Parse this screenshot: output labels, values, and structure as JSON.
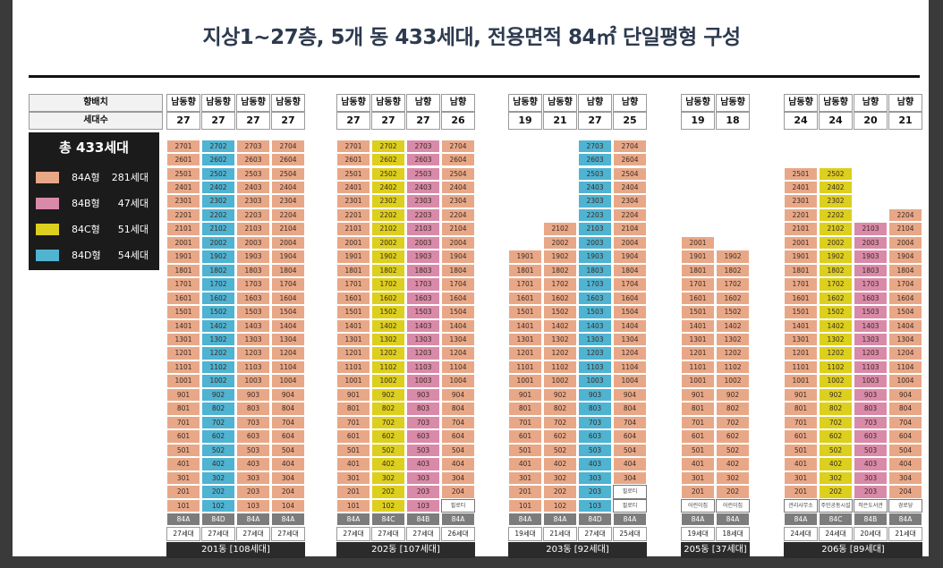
{
  "title": "지상1~27층, 5개 동 433세대, 전용면적 84㎡ 단일평형 구성",
  "row_labels": {
    "direction": "향배치",
    "units": "세대수"
  },
  "legend": {
    "title": "총 433세대",
    "items": [
      {
        "key": "A",
        "name": "84A형",
        "count": "281세대",
        "color": "#e8a888"
      },
      {
        "key": "B",
        "name": "84B형",
        "count": "47세대",
        "color": "#d98aa8"
      },
      {
        "key": "C",
        "name": "84C형",
        "count": "51세대",
        "color": "#dccf1e"
      },
      {
        "key": "D",
        "name": "84D형",
        "count": "54세대",
        "color": "#4fb3d2"
      }
    ]
  },
  "colors": {
    "A": "#e8a888",
    "B": "#d98aa8",
    "C": "#dccf1e",
    "D": "#4fb3d2"
  },
  "buildings": [
    {
      "name": "201동 [108세대]",
      "columns": [
        {
          "dir": "남동향",
          "count": "27",
          "type": "84A",
          "type_code": "A",
          "top": 27,
          "units": "27세대",
          "facility": [],
          "facility_label": ""
        },
        {
          "dir": "남동향",
          "count": "27",
          "type": "84D",
          "type_code": "D",
          "top": 27,
          "units": "27세대",
          "facility": [],
          "facility_label": ""
        },
        {
          "dir": "남동향",
          "count": "27",
          "type": "84A",
          "type_code": "A",
          "top": 27,
          "units": "27세대",
          "facility": [],
          "facility_label": ""
        },
        {
          "dir": "남동향",
          "count": "27",
          "type": "84A",
          "type_code": "A",
          "top": 27,
          "units": "27세대",
          "facility": [],
          "facility_label": ""
        }
      ]
    },
    {
      "name": "202동 [107세대]",
      "columns": [
        {
          "dir": "남동향",
          "count": "27",
          "type": "84A",
          "type_code": "A",
          "top": 27,
          "units": "27세대",
          "facility": [],
          "facility_label": ""
        },
        {
          "dir": "남동향",
          "count": "27",
          "type": "84C",
          "type_code": "C",
          "top": 27,
          "units": "27세대",
          "facility": [],
          "facility_label": ""
        },
        {
          "dir": "남향",
          "count": "27",
          "type": "84B",
          "type_code": "B",
          "top": 27,
          "units": "27세대",
          "facility": [],
          "facility_label": ""
        },
        {
          "dir": "남향",
          "count": "26",
          "type": "84A",
          "type_code": "A",
          "top": 27,
          "units": "26세대",
          "facility": [
            1
          ],
          "facility_label": "필로티"
        }
      ]
    },
    {
      "name": "203동 [92세대]",
      "columns": [
        {
          "dir": "남동향",
          "count": "19",
          "type": "84A",
          "type_code": "A",
          "top": 19,
          "units": "19세대",
          "facility": [],
          "facility_label": ""
        },
        {
          "dir": "남동향",
          "count": "21",
          "type": "84A",
          "type_code": "A",
          "top": 21,
          "units": "21세대",
          "facility": [],
          "facility_label": ""
        },
        {
          "dir": "남향",
          "count": "27",
          "type": "84D",
          "type_code": "D",
          "top": 27,
          "units": "27세대",
          "facility": [],
          "facility_label": ""
        },
        {
          "dir": "남향",
          "count": "25",
          "type": "84A",
          "type_code": "A",
          "top": 27,
          "units": "25세대",
          "facility": [
            1,
            2
          ],
          "facility_label": "필로티"
        }
      ]
    },
    {
      "name": "205동 [37세대]",
      "columns": [
        {
          "dir": "남동향",
          "count": "19",
          "type": "84A",
          "type_code": "A",
          "top": 20,
          "units": "19세대",
          "facility": [
            1
          ],
          "facility_label": "어린이집"
        },
        {
          "dir": "남동향",
          "count": "18",
          "type": "84A",
          "type_code": "A",
          "top": 19,
          "units": "18세대",
          "facility": [
            1
          ],
          "facility_label": "어린이집"
        }
      ]
    },
    {
      "name": "206동 [89세대]",
      "columns": [
        {
          "dir": "남동향",
          "count": "24",
          "type": "84A",
          "type_code": "A",
          "top": 25,
          "units": "24세대",
          "facility": [
            1
          ],
          "facility_label": "관리사무소"
        },
        {
          "dir": "남동향",
          "count": "24",
          "type": "84C",
          "type_code": "C",
          "top": 25,
          "units": "24세대",
          "facility": [
            1
          ],
          "facility_label": "주민공동시설"
        },
        {
          "dir": "남향",
          "count": "20",
          "type": "84B",
          "type_code": "B",
          "top": 21,
          "units": "20세대",
          "facility": [
            1
          ],
          "facility_label": "작은도서관"
        },
        {
          "dir": "남향",
          "count": "21",
          "type": "84A",
          "type_code": "A",
          "top": 22,
          "units": "21세대",
          "facility": [
            1
          ],
          "facility_label": "경로당"
        }
      ]
    }
  ]
}
